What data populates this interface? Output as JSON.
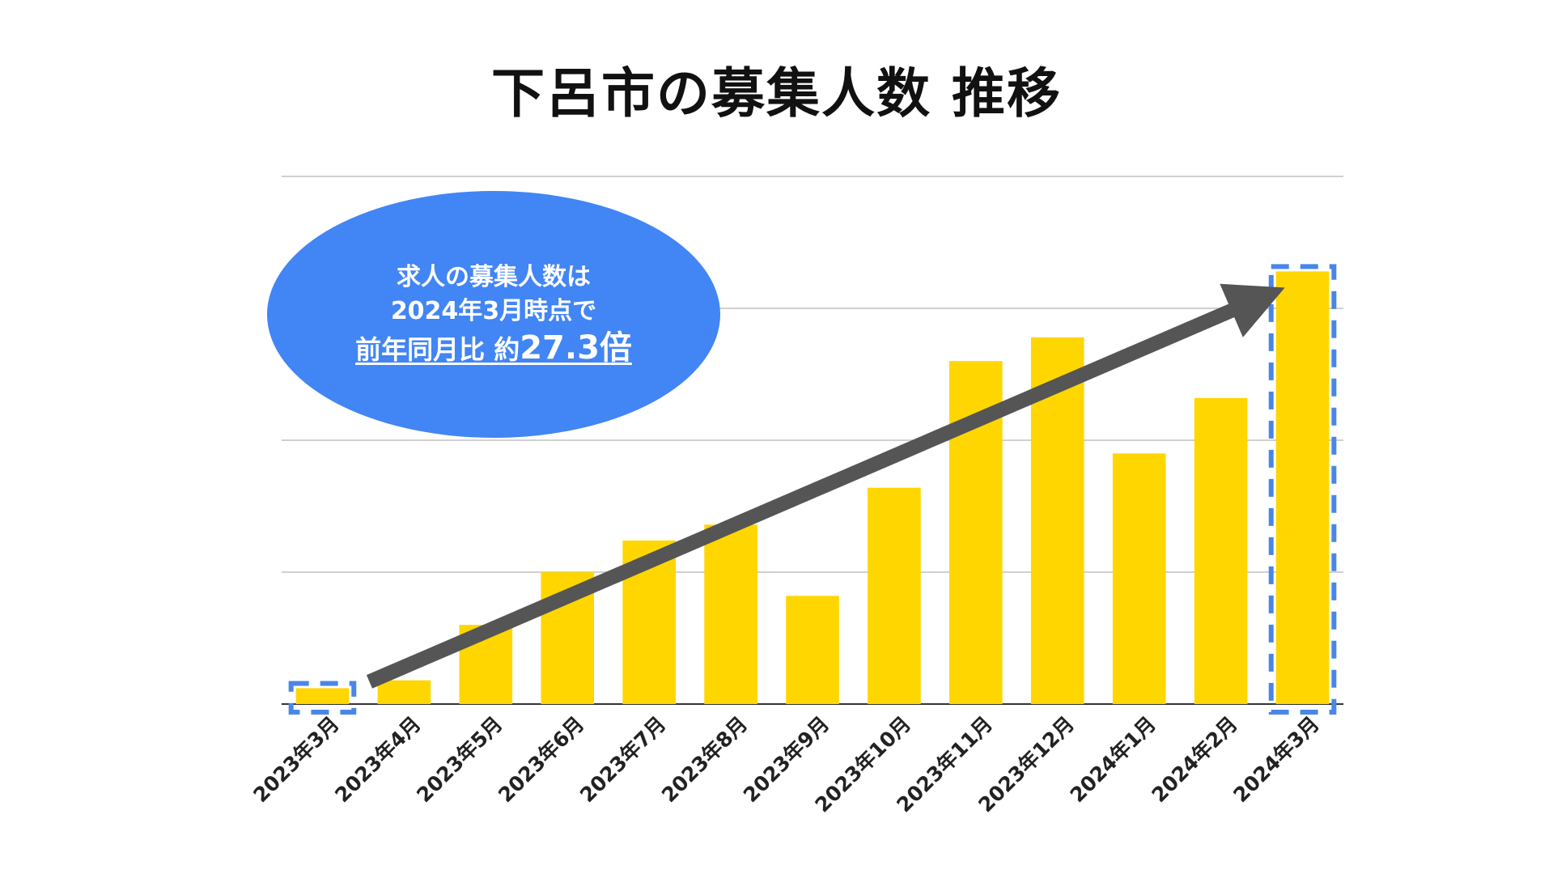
{
  "title": "下呂市の募集人数 推移",
  "callout": {
    "line1": "求人の募集人数は",
    "line2": "2024年3月時点で",
    "line3_prefix": "前年同月比 約",
    "line3_value": "27.3倍",
    "color": "#4285F4"
  },
  "colors": {
    "bar": "#FFD600",
    "highlight_border": "#4A86E8",
    "arrow": "#555555",
    "grid": "#D0D0D0",
    "baseline": "#333333"
  },
  "chart_data": {
    "type": "bar",
    "title": "下呂市の募集人数 推移",
    "categories": [
      "2023年3月",
      "2023年4月",
      "2023年5月",
      "2023年6月",
      "2023年7月",
      "2023年8月",
      "2023年9月",
      "2023年10月",
      "2023年11月",
      "2023年12月",
      "2024年1月",
      "2024年2月",
      "2024年3月"
    ],
    "values": [
      3,
      4.5,
      15,
      25,
      31,
      34,
      20.5,
      41,
      65,
      69.5,
      47.5,
      58,
      82
    ],
    "ylim": [
      0,
      100
    ],
    "grid": true,
    "y_tick_labels_shown": false,
    "highlighted_categories": [
      "2023年3月",
      "2024年3月"
    ],
    "trend_arrow": {
      "from": "2023年3月",
      "to": "2024年3月"
    }
  }
}
